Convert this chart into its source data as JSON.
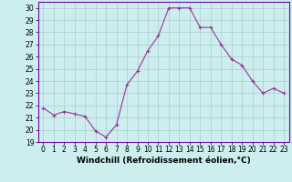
{
  "x": [
    0,
    1,
    2,
    3,
    4,
    5,
    6,
    7,
    8,
    9,
    10,
    11,
    12,
    13,
    14,
    15,
    16,
    17,
    18,
    19,
    20,
    21,
    22,
    23
  ],
  "y": [
    21.8,
    21.2,
    21.5,
    21.3,
    21.1,
    19.9,
    19.4,
    20.4,
    23.7,
    24.8,
    26.5,
    27.7,
    30.0,
    30.0,
    30.0,
    28.4,
    28.4,
    27.0,
    25.8,
    25.3,
    24.0,
    23.0,
    23.4,
    23.0
  ],
  "line_color": "#993399",
  "marker": "P",
  "marker_size": 2.5,
  "bg_color": "#cceeee",
  "grid_color": "#aacccc",
  "xlabel": "Windchill (Refroidissement éolien,°C)",
  "xlim": [
    -0.5,
    23.5
  ],
  "ylim": [
    19,
    30.5
  ],
  "yticks": [
    19,
    20,
    21,
    22,
    23,
    24,
    25,
    26,
    27,
    28,
    29,
    30
  ],
  "xticks": [
    0,
    1,
    2,
    3,
    4,
    5,
    6,
    7,
    8,
    9,
    10,
    11,
    12,
    13,
    14,
    15,
    16,
    17,
    18,
    19,
    20,
    21,
    22,
    23
  ],
  "tick_fontsize": 5.5,
  "xlabel_fontsize": 6.5,
  "spine_color": "#7700aa"
}
